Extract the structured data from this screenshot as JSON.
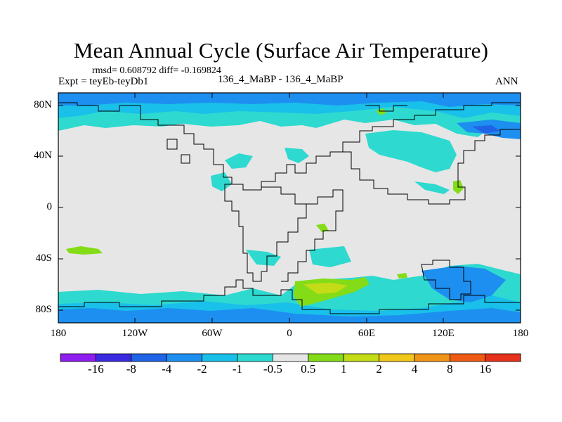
{
  "title": "Mean Annual Cycle (Surface Air Temperature)",
  "stats": "rmsd= 0.608792 diff= -0.169824",
  "experiment": "Expt = teyEb-teyDb1",
  "case_label": "136_4_MaBP - 136_4_MaBP",
  "season": "ANN",
  "map": {
    "type": "heatmap",
    "variable": "Surface Air Temperature difference",
    "lon_range": [
      -180,
      180
    ],
    "lat_range": [
      -90,
      90
    ],
    "lat_ticks": [
      "80N",
      "40N",
      "0",
      "40S",
      "80S"
    ],
    "lon_ticks": [
      "180",
      "120W",
      "60W",
      "0",
      "60E",
      "120E",
      "180"
    ],
    "background_value_bin": "-0.5 to 0.5"
  },
  "colorbar": {
    "levels": [
      "-16",
      "-8",
      "-4",
      "-2",
      "-1",
      "-0.5",
      "0.5",
      "1",
      "2",
      "4",
      "8",
      "16"
    ],
    "colors": [
      "#8f1ff0",
      "#3b2be0",
      "#1f63e6",
      "#1d8ff0",
      "#19c0ea",
      "#2ed9cf",
      "#e6e6e6",
      "#83dc17",
      "#c4dc16",
      "#f0c81a",
      "#f09418",
      "#ef5a14",
      "#e6321a"
    ]
  }
}
